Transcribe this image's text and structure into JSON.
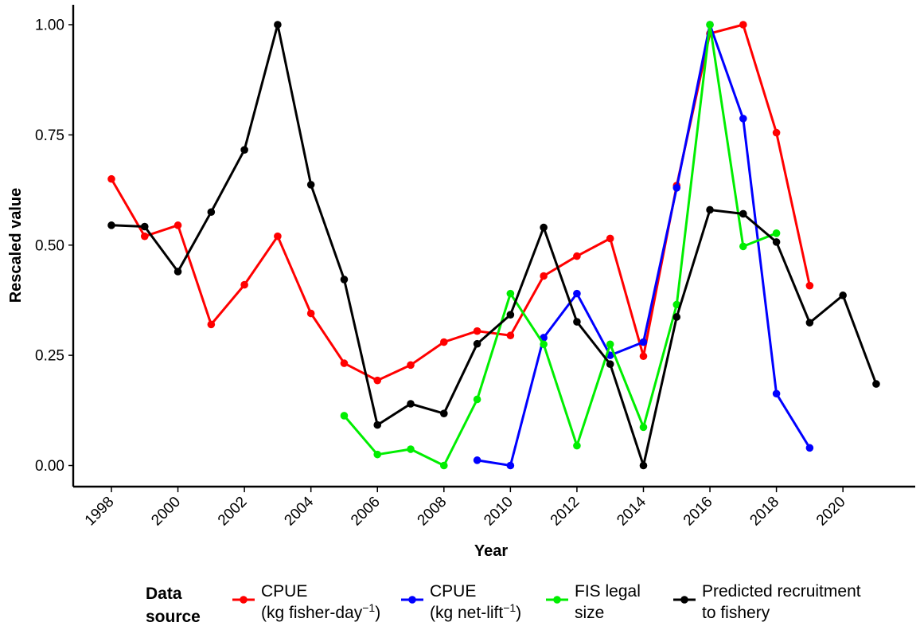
{
  "chart_data": {
    "type": "line",
    "xlabel": "Year",
    "ylabel": "Rescaled value",
    "xlim": [
      1997,
      2022
    ],
    "ylim": [
      -0.05,
      1.05
    ],
    "x_ticks": [
      1998,
      2000,
      2002,
      2004,
      2006,
      2008,
      2010,
      2012,
      2014,
      2016,
      2018,
      2020
    ],
    "x_tick_labels": [
      "1998",
      "2000",
      "2002",
      "2004",
      "2006",
      "2008",
      "2010",
      "2012",
      "2014",
      "2016",
      "2018",
      "2020"
    ],
    "y_ticks": [
      0,
      0.25,
      0.5,
      0.75,
      1.0
    ],
    "y_tick_labels": [
      "0.00",
      "0.25",
      "0.50",
      "0.75",
      "1.00"
    ],
    "grid": false,
    "legend": {
      "title_lines": [
        "Data",
        "source"
      ],
      "placement": "bottom"
    },
    "series": [
      {
        "key": "cpue-fisher-day",
        "name": "CPUE (kg fisher-day⁻¹)",
        "name_line1": "CPUE",
        "name_line2_pre": "(kg fisher-day",
        "name_line2_sup": "−1",
        "name_line2_post": ")",
        "color": "#ff0000",
        "x": [
          1998,
          1999,
          2000,
          2001,
          2002,
          2003,
          2004,
          2005,
          2006,
          2007,
          2008,
          2009,
          2010,
          2011,
          2012,
          2013,
          2014,
          2015,
          2016,
          2017,
          2018,
          2019
        ],
        "y": [
          0.65,
          0.52,
          0.545,
          0.32,
          0.41,
          0.52,
          0.345,
          0.232,
          0.193,
          0.228,
          0.28,
          0.305,
          0.295,
          0.43,
          0.475,
          0.515,
          0.248,
          0.635,
          0.98,
          1.0,
          0.755,
          0.408
        ]
      },
      {
        "key": "cpue-net-lift",
        "name": "CPUE (kg net-lift⁻¹)",
        "name_line1": "CPUE",
        "name_line2_pre": "(kg net-lift",
        "name_line2_sup": "−1",
        "name_line2_post": ")",
        "color": "#0000ff",
        "x": [
          2009,
          2010,
          2011,
          2012,
          2013,
          2014,
          2015,
          2016,
          2017,
          2018,
          2019
        ],
        "y": [
          0.012,
          0.0,
          0.29,
          0.39,
          0.25,
          0.28,
          0.63,
          1.0,
          0.787,
          0.163,
          0.04
        ]
      },
      {
        "key": "fis-legal-size",
        "name": "FIS legal size",
        "name_line1": "FIS legal",
        "name_line2_pre": "size",
        "name_line2_sup": "",
        "name_line2_post": "",
        "color": "#00ee00",
        "x": [
          2005,
          2006,
          2007,
          2008,
          2009,
          2010,
          2011,
          2012,
          2013,
          2014,
          2015,
          2016,
          2017,
          2018
        ],
        "y": [
          0.113,
          0.025,
          0.037,
          0.0,
          0.15,
          0.39,
          0.275,
          0.045,
          0.275,
          0.087,
          0.365,
          1.0,
          0.497,
          0.527
        ]
      },
      {
        "key": "predicted-recruitment",
        "name": "Predicted recruitment to fishery",
        "name_line1": "Predicted recruitment",
        "name_line2_pre": "to fishery",
        "name_line2_sup": "",
        "name_line2_post": "",
        "color": "#000000",
        "x": [
          1998,
          1999,
          2000,
          2001,
          2002,
          2003,
          2004,
          2005,
          2006,
          2007,
          2008,
          2009,
          2010,
          2011,
          2012,
          2013,
          2014,
          2015,
          2016,
          2017,
          2018,
          2019,
          2020,
          2021
        ],
        "y": [
          0.545,
          0.542,
          0.44,
          0.575,
          0.716,
          1.0,
          0.637,
          0.422,
          0.092,
          0.14,
          0.118,
          0.276,
          0.342,
          0.54,
          0.326,
          0.23,
          0.0,
          0.337,
          0.58,
          0.571,
          0.507,
          0.324,
          0.386,
          0.185
        ]
      }
    ]
  }
}
